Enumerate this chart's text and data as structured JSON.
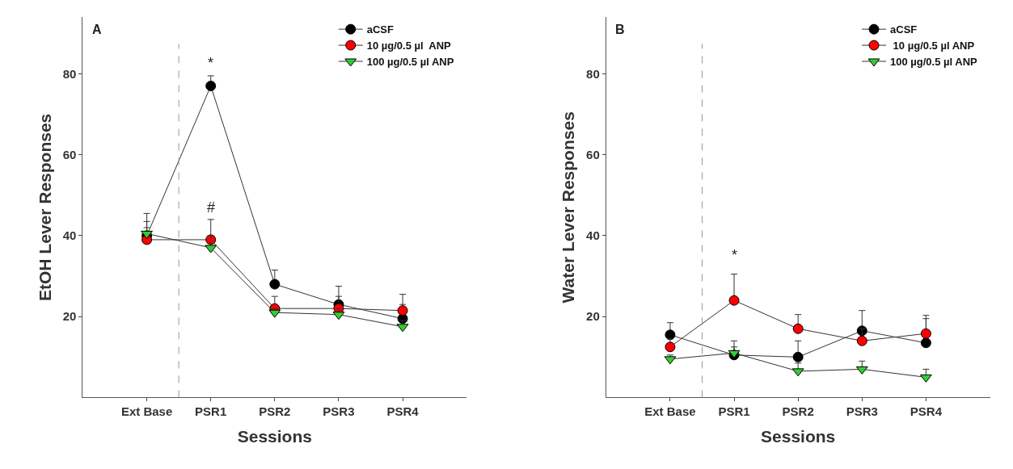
{
  "chart_data": [
    {
      "type": "line",
      "title": "A",
      "xlabel": "Sessions",
      "ylabel": "EtOH Lever Responses",
      "categories": [
        "Ext Base",
        "PSR1",
        "PSR2",
        "PSR3",
        "PSR4"
      ],
      "ylim": [
        0,
        94
      ],
      "yticks": [
        20,
        40,
        60,
        80
      ],
      "legend": "top right",
      "line_style": "solid",
      "series": [
        {
          "name": "aCSF",
          "color": "#000000",
          "marker": "circle",
          "values": [
            40,
            77,
            28,
            23,
            19.5
          ],
          "errors": [
            [
              40,
              45.5
            ],
            [
              77,
              79.5
            ],
            [
              28,
              31.5
            ],
            [
              23,
              27.5
            ],
            [
              19.5,
              23
            ]
          ]
        },
        {
          "name": "10 µg/0.5 µl  ANP",
          "color": "#ff0000",
          "marker": "circle",
          "values": [
            39,
            39,
            22,
            22,
            21.5
          ],
          "errors": [
            [
              39,
              42
            ],
            [
              39,
              44
            ],
            [
              22,
              25
            ],
            [
              22,
              25
            ],
            [
              21.5,
              25.5
            ]
          ]
        },
        {
          "name": "100 µg/0.5 µl ANP",
          "color": "#33cc33",
          "marker": "triangle",
          "values": [
            40.5,
            37,
            21,
            20.5,
            17.5
          ],
          "errors": [
            [
              40.5,
              43.5
            ],
            [
              37,
              40
            ],
            [
              21,
              22
            ],
            [
              20.5,
              22
            ],
            [
              17.5,
              19
            ]
          ]
        }
      ],
      "annotations": [
        "*",
        "#"
      ]
    },
    {
      "type": "line",
      "title": "B",
      "xlabel": "Sessions",
      "ylabel": "Water Lever Responses",
      "categories": [
        "Ext Base",
        "PSR1",
        "PSR2",
        "PSR3",
        "PSR4"
      ],
      "ylim": [
        0,
        94
      ],
      "yticks": [
        20,
        40,
        60,
        80
      ],
      "legend": "top right",
      "line_style": "solid",
      "series": [
        {
          "name": "aCSF",
          "color": "#000000",
          "marker": "circle",
          "values": [
            15.5,
            10.5,
            10,
            16.5,
            13.5
          ],
          "errors": [
            [
              15.5,
              18.5
            ],
            [
              10.5,
              12.5
            ],
            [
              10,
              14
            ],
            [
              16.5,
              21.5
            ],
            [
              13.5,
              19.5
            ]
          ]
        },
        {
          "name": " 10 µg/0.5 µl ANP",
          "color": "#ff0000",
          "marker": "circle",
          "values": [
            12.5,
            24,
            17,
            14,
            15.8
          ],
          "errors": [
            [
              12.5,
              14.5
            ],
            [
              24,
              30.5
            ],
            [
              17,
              20.5
            ],
            [
              14,
              17
            ],
            [
              15.8,
              20.3
            ]
          ]
        },
        {
          "name": "100 µg/0.5 µl ANP",
          "color": "#33cc33",
          "marker": "triangle",
          "values": [
            9.5,
            11,
            6.5,
            7,
            5
          ],
          "errors": [
            [
              9.5,
              10.5
            ],
            [
              11,
              14
            ],
            [
              6.5,
              8.5
            ],
            [
              7,
              9
            ],
            [
              5,
              7
            ]
          ]
        }
      ],
      "annotations": [
        "*"
      ]
    }
  ]
}
